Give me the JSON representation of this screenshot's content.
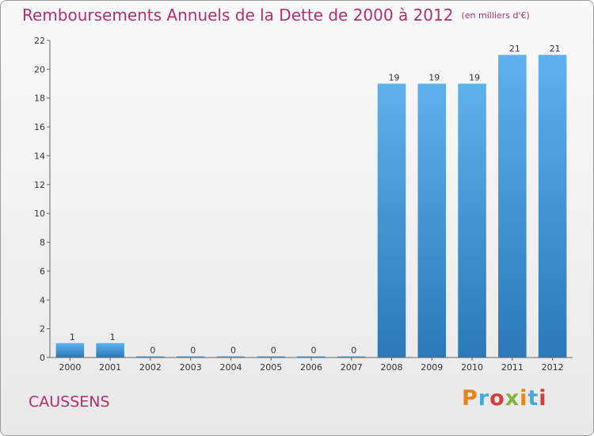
{
  "header": {
    "title": "Remboursements Annuels de la Dette de 2000 à 2012",
    "unit": "(en milliers d'€)"
  },
  "footer": {
    "commune": "CAUSSENS",
    "logo_text": "Proxiti",
    "logo_colors": [
      "#e8841c",
      "#47a9d8",
      "#d33f3f",
      "#7cb63a",
      "#e8841c",
      "#47a9d8",
      "#d33f3f"
    ]
  },
  "colors": {
    "bar_top": "#5fb1ec",
    "bar_bottom": "#2a78b8",
    "title": "#b0306e"
  },
  "chart_data": {
    "type": "bar",
    "categories": [
      "2000",
      "2001",
      "2002",
      "2003",
      "2004",
      "2005",
      "2006",
      "2007",
      "2008",
      "2009",
      "2010",
      "2011",
      "2012"
    ],
    "values": [
      1,
      1,
      0,
      0,
      0,
      0,
      0,
      0,
      19,
      19,
      19,
      21,
      21
    ],
    "data_labels": [
      "1",
      "1",
      "0",
      "0",
      "0",
      "0",
      "0",
      "0",
      "19",
      "19",
      "19",
      "21",
      "21"
    ],
    "y_ticks": [
      0,
      2,
      4,
      6,
      8,
      10,
      12,
      14,
      16,
      18,
      20,
      22
    ],
    "ylim": [
      0,
      22
    ],
    "grid": false,
    "legend": "none"
  }
}
